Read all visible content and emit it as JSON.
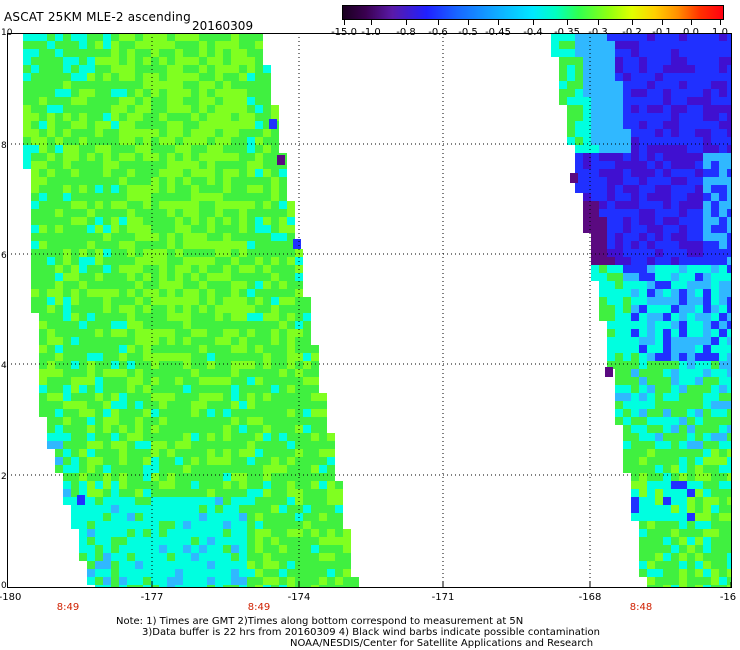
{
  "header": {
    "title": "ASCAT 25KM MLE-2 ascending",
    "date": "20160309"
  },
  "colorbar": {
    "labels": [
      "-15.0",
      "-1.0",
      "-0.8",
      "-0.6",
      "-0.5",
      "-0.45",
      "-0.4",
      "-0.35",
      "-0.3",
      "-0.2",
      "-0.1",
      "0.0",
      "1.0"
    ],
    "colors": [
      "#1a0020",
      "#3a0050",
      "#5a1aa8",
      "#2020ff",
      "#1866ff",
      "#10a8ff",
      "#00e8ff",
      "#00ffc0",
      "#30ff50",
      "#90ff10",
      "#e0ff00",
      "#ffd000",
      "#ff9000",
      "#ff0010"
    ]
  },
  "map": {
    "y_labels": [
      "10",
      "8",
      "6",
      "4",
      "2",
      "0"
    ],
    "x_labels": [
      "-180",
      "-177",
      "-174",
      "-171",
      "-168",
      "-16"
    ],
    "time_labels": [
      "8:49",
      "8:49",
      "8:48"
    ],
    "swath_colors": {
      "green": "#40f040",
      "lime": "#80ff20",
      "cyan": "#00ffe0",
      "sky": "#30b8ff",
      "blue": "#2030ff",
      "indigo": "#4010d0",
      "purple": "#5a0a80"
    }
  },
  "notes": {
    "line1": "Note: 1) Times are GMT 2)Times along bottom correspond to measurement at 5N",
    "line2": "3)Data buffer is 22 hrs from 20160309 4) Black wind barbs indicate possible contamination",
    "line3": "NOAA/NESDIS/Center for Satellite Applications and Research"
  }
}
